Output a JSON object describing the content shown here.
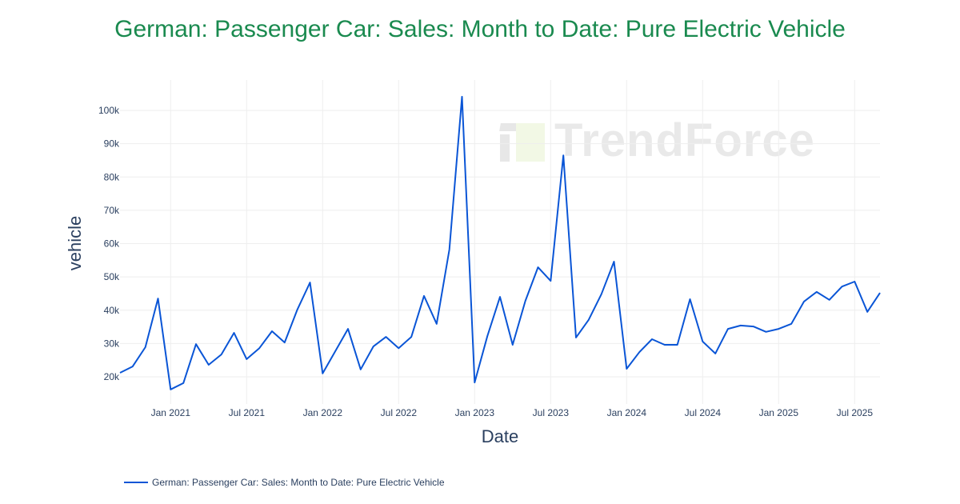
{
  "title": "German: Passenger Car: Sales: Month to Date: Pure Electric Vehicle",
  "watermark": "TrendForce",
  "legend": {
    "label": "German: Passenger Car: Sales: Month to Date: Pure Electric Vehicle",
    "placement": "bottom-left"
  },
  "colors": {
    "line": "#0a55d6",
    "title": "#1a8a4f",
    "grid": "#eeeeee",
    "axis_text": "#2a3f5f"
  },
  "chart_data": {
    "type": "line",
    "title": "German: Passenger Car: Sales: Month to Date: Pure Electric Vehicle",
    "xlabel": "Date",
    "ylabel": "vehicle",
    "grid": true,
    "ylim": [
      11000,
      105000
    ],
    "xlim": [
      "2020-09",
      "2025-09"
    ],
    "x_ticks": [
      "Jan 2021",
      "Jul 2021",
      "Jan 2022",
      "Jul 2022",
      "Jan 2023",
      "Jul 2023",
      "Jan 2024",
      "Jul 2024",
      "Jan 2025",
      "Jul 2025"
    ],
    "x_tick_dates": [
      "2021-01",
      "2021-07",
      "2022-01",
      "2022-07",
      "2023-01",
      "2023-07",
      "2024-01",
      "2024-07",
      "2025-01",
      "2025-07"
    ],
    "y_ticks": [
      "20k",
      "30k",
      "40k",
      "50k",
      "60k",
      "70k",
      "80k",
      "90k",
      "100k"
    ],
    "y_tick_values": [
      20000,
      30000,
      40000,
      50000,
      60000,
      70000,
      80000,
      90000,
      100000
    ],
    "series": [
      {
        "name": "German: Passenger Car: Sales: Month to Date: Pure Electric Vehicle",
        "x": [
          "2020-09",
          "2020-10",
          "2020-11",
          "2020-12",
          "2021-01",
          "2021-02",
          "2021-03",
          "2021-04",
          "2021-05",
          "2021-06",
          "2021-07",
          "2021-08",
          "2021-09",
          "2021-10",
          "2021-11",
          "2021-12",
          "2022-01",
          "2022-02",
          "2022-03",
          "2022-04",
          "2022-05",
          "2022-06",
          "2022-07",
          "2022-08",
          "2022-09",
          "2022-10",
          "2022-11",
          "2022-12",
          "2023-01",
          "2023-02",
          "2023-03",
          "2023-04",
          "2023-05",
          "2023-06",
          "2023-07",
          "2023-08",
          "2023-09",
          "2023-10",
          "2023-11",
          "2023-12",
          "2024-01",
          "2024-02",
          "2024-03",
          "2024-04",
          "2024-05",
          "2024-06",
          "2024-07",
          "2024-08",
          "2024-09",
          "2024-10",
          "2024-11",
          "2024-12",
          "2025-01",
          "2025-02",
          "2025-03",
          "2025-04",
          "2025-05",
          "2025-06",
          "2025-07",
          "2025-08",
          "2025-09"
        ],
        "values": [
          21200,
          23100,
          28900,
          43500,
          16200,
          18100,
          29800,
          23600,
          26700,
          33200,
          25300,
          28600,
          33700,
          30300,
          40200,
          48300,
          21000,
          27700,
          34400,
          22200,
          29100,
          32000,
          28600,
          32000,
          44300,
          35900,
          58200,
          104100,
          18300,
          32200,
          44000,
          29600,
          42800,
          52900,
          48800,
          86500,
          31800,
          37100,
          44800,
          54600,
          22400,
          27400,
          31300,
          29600,
          29600,
          43300,
          30600,
          27000,
          34400,
          35400,
          35100,
          33500,
          34400,
          35900,
          42600,
          45500,
          43100,
          47100,
          48600,
          39500,
          45200
        ]
      }
    ]
  }
}
